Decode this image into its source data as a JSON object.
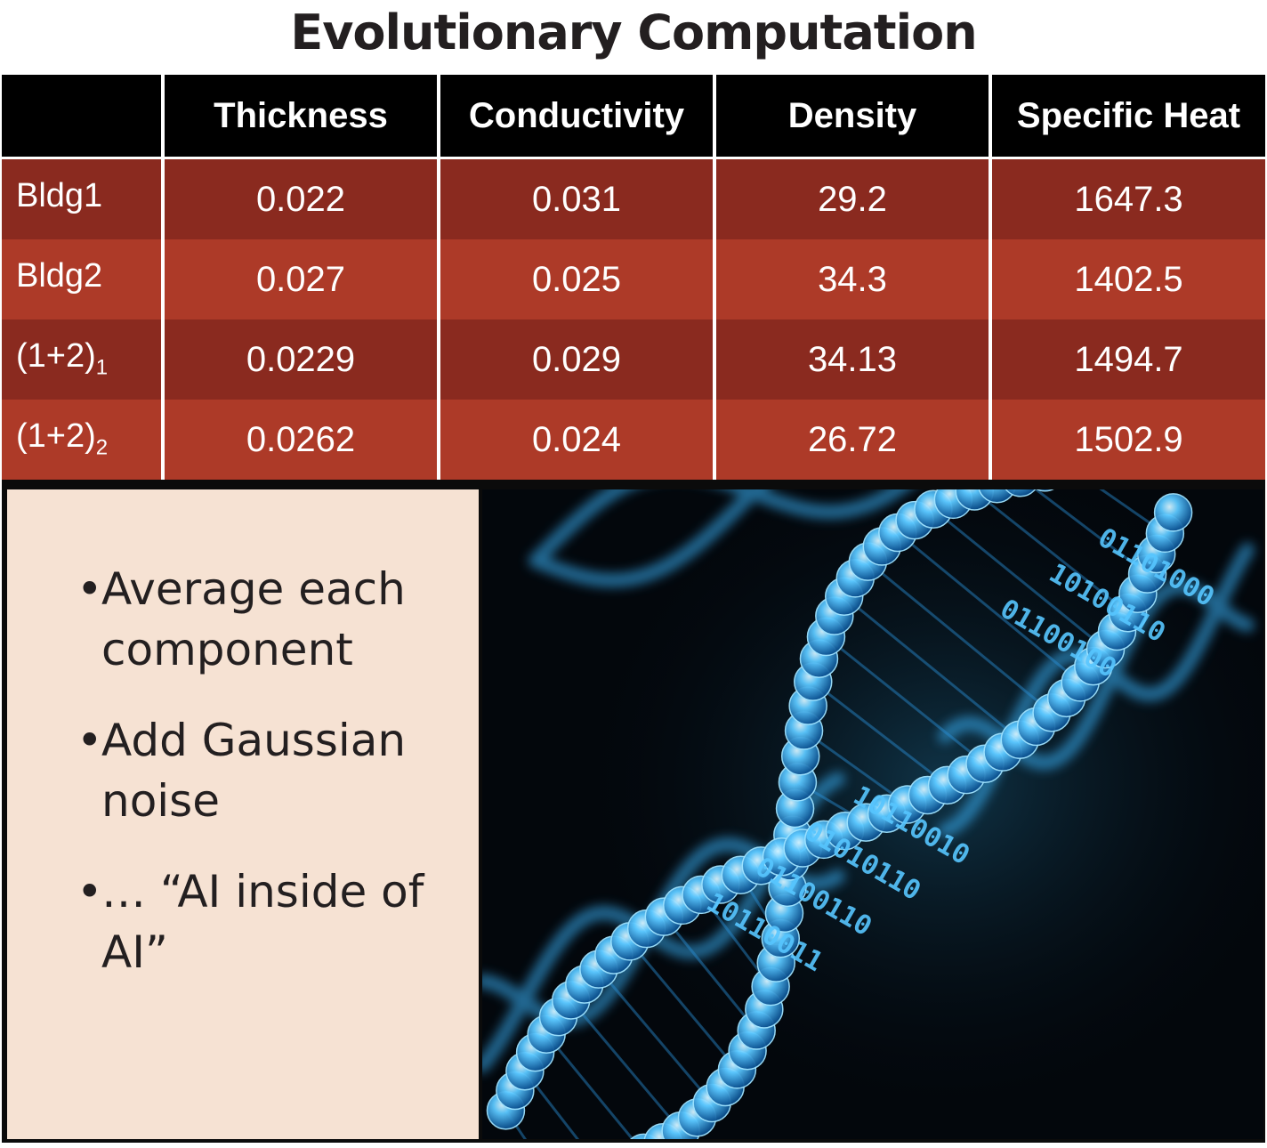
{
  "title": "Evolutionary Computation",
  "table": {
    "columns": [
      "",
      "Thickness",
      "Conductivity",
      "Density",
      "Specific Heat"
    ],
    "rows": [
      {
        "label": "Bldg1",
        "sub": "",
        "values": [
          "0.022",
          "0.031",
          "29.2",
          "1647.3"
        ]
      },
      {
        "label": "Bldg2",
        "sub": "",
        "values": [
          "0.027",
          "0.025",
          "34.3",
          "1402.5"
        ]
      },
      {
        "label": "(1+2)",
        "sub": "1",
        "values": [
          "0.0229",
          "0.029",
          "34.13",
          "1494.7"
        ]
      },
      {
        "label": "(1+2)",
        "sub": "2",
        "values": [
          "0.0262",
          "0.024",
          "26.72",
          "1502.9"
        ]
      }
    ]
  },
  "bullets": [
    "Average each component",
    "Add Gaussian noise",
    "… “AI inside of AI”"
  ],
  "bullet_symbol": "•",
  "image": {
    "subject": "dna-double-helix-binary-icon",
    "binary_text": [
      "10110011",
      "01100110",
      "01010110",
      "10110010",
      "01100100",
      "10100110",
      "01101000"
    ]
  },
  "colors": {
    "header_bg": "#000000",
    "row_dark": "#8a2a1f",
    "row_light": "#ad3a28",
    "panel_bg": "#f6e2d3",
    "helix_blue": "#3ab7ff"
  }
}
